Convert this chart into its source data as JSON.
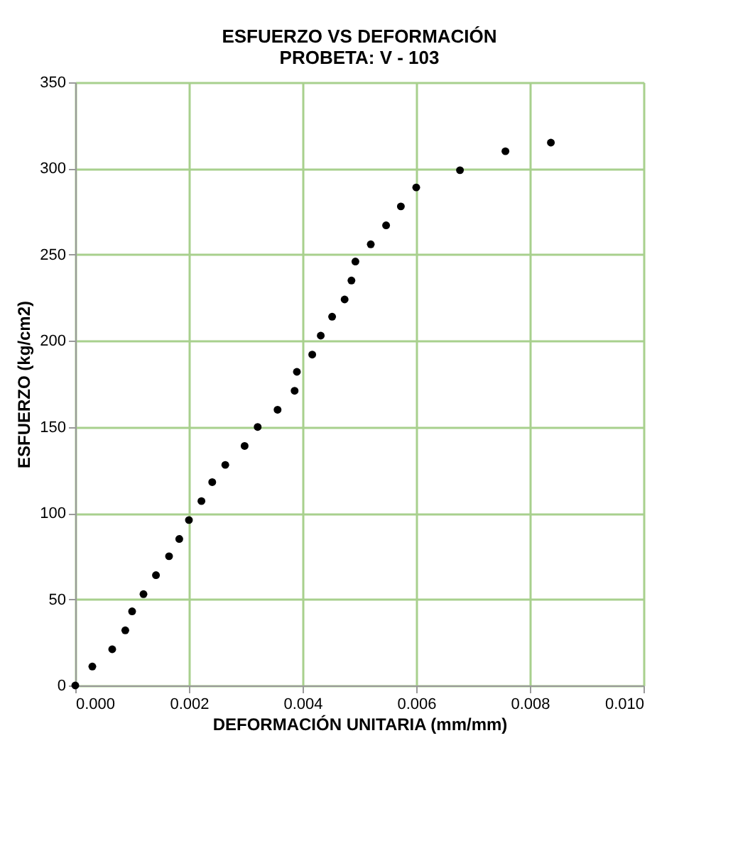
{
  "chart_data": {
    "type": "scatter",
    "title": [
      "ESFUERZO  VS DEFORMACIÓN",
      "PROBETA:  V - 103"
    ],
    "xlabel": "DEFORMACIÓN UNITARIA (mm/mm)",
    "ylabel": "ESFUERZO (kg/cm2)",
    "x": [
      0,
      0.0003,
      0.00065,
      0.00088,
      0.001,
      0.0012,
      0.00142,
      0.00165,
      0.00183,
      0.002,
      0.00222,
      0.00241,
      0.00264,
      0.00298,
      0.00321,
      0.00356,
      0.00386,
      0.0039,
      0.00417,
      0.00432,
      0.00452,
      0.00474,
      0.00486,
      0.00493,
      0.0052,
      0.00547,
      0.00573,
      0.006,
      0.00677,
      0.00757,
      0.00837
    ],
    "series": [
      {
        "color": "#000000",
        "values": [
          0,
          11,
          21,
          32,
          43,
          53,
          64,
          75,
          85,
          96,
          107,
          118,
          128,
          139,
          150,
          160,
          171,
          182,
          192,
          203,
          214,
          224,
          235,
          246,
          256,
          267,
          278,
          289,
          299,
          310,
          315
        ]
      }
    ],
    "xlim": [
      0,
      0.01
    ],
    "xticks": [
      {
        "value": 0,
        "label": "0.000"
      },
      {
        "value": 0.002,
        "label": "0.002"
      },
      {
        "value": 0.004,
        "label": "0.004"
      },
      {
        "value": 0.006,
        "label": "0.006"
      },
      {
        "value": 0.008,
        "label": "0.008"
      },
      {
        "value": 0.01,
        "label": "0.010"
      }
    ],
    "ylim": [
      0,
      350
    ],
    "yticks": [
      0,
      50,
      100,
      150,
      200,
      250,
      300,
      350
    ],
    "grid": true,
    "marker": "circle"
  }
}
